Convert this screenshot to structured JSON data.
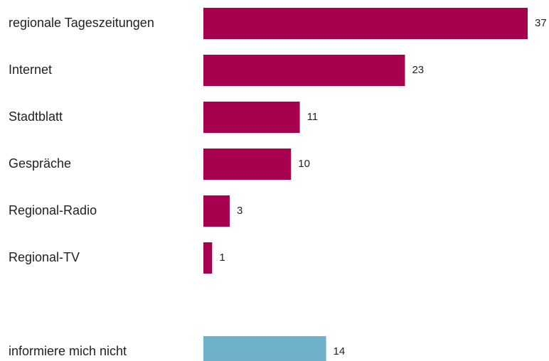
{
  "chart_data": {
    "type": "bar",
    "orientation": "horizontal",
    "categories": [
      "regionale Tageszeitungen",
      "Internet",
      "Stadtblatt",
      "Gespräche",
      "Regional-Radio",
      "Regional-TV",
      null,
      "informiere mich nicht"
    ],
    "values": [
      37,
      23,
      11,
      10,
      3,
      1,
      null,
      14
    ],
    "colors": [
      "#a6004e",
      "#a6004e",
      "#a6004e",
      "#a6004e",
      "#a6004e",
      "#a6004e",
      null,
      "#6fb1c8"
    ]
  }
}
